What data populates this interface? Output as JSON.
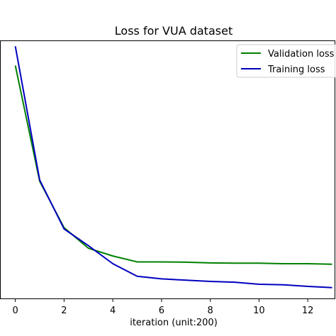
{
  "chart_data": {
    "type": "line",
    "title": "Loss for VUA dataset",
    "xlabel": "iteration (unit:200)",
    "ylabel": "",
    "xlim": [
      -0.6,
      13.1
    ],
    "ylim": [
      0,
      1.0
    ],
    "xticks": [
      0,
      2,
      4,
      6,
      8,
      10,
      12
    ],
    "x": [
      0,
      1,
      2,
      3,
      4,
      5,
      6,
      7,
      8,
      9,
      10,
      11,
      12,
      13
    ],
    "grid": false,
    "legend_position": "top-right",
    "series": [
      {
        "name": "Validation loss",
        "color": "#008000",
        "values": [
          0.905,
          0.455,
          0.275,
          0.195,
          0.165,
          0.142,
          0.142,
          0.141,
          0.138,
          0.137,
          0.137,
          0.135,
          0.135,
          0.133
        ]
      },
      {
        "name": "Training loss",
        "color": "#0000bf",
        "values": [
          0.98,
          0.46,
          0.27,
          0.205,
          0.135,
          0.086,
          0.076,
          0.071,
          0.066,
          0.063,
          0.055,
          0.053,
          0.047,
          0.042
        ]
      }
    ]
  }
}
